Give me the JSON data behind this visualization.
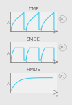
{
  "panels": [
    {
      "label": "DME",
      "panel_letter": "a",
      "type": "dme",
      "bg_color": "#f0f0f0",
      "line_color": "#44ccee",
      "axis_color": "#888888"
    },
    {
      "label": "SMDE",
      "panel_letter": "b",
      "type": "smde",
      "bg_color": "#f0f0f0",
      "line_color": "#44ccee",
      "axis_color": "#888888"
    },
    {
      "label": "HMDE",
      "panel_letter": "c",
      "type": "hmde",
      "bg_color": "#f0f0f0",
      "line_color": "#44ccee",
      "axis_color": "#888888"
    }
  ],
  "ylabel": "A",
  "xlabel": "t",
  "title_fontsize": 5,
  "label_fontsize": 4.5,
  "axis_fontsize": 4,
  "overall_bg": "#e8e8e8"
}
